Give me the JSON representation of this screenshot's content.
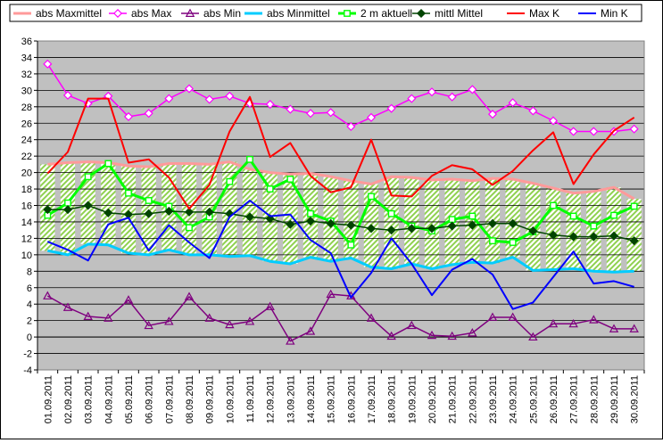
{
  "chart_data": {
    "type": "line",
    "title": "",
    "xlabel": "",
    "ylabel": "",
    "ylim": [
      -4,
      36
    ],
    "y_tick_step": 2,
    "grid": true,
    "legend_position": "top",
    "plot_background": "#c0c0c0",
    "band_color": "#8fd14f",
    "categories": [
      "01.09.2011",
      "02.09.2011",
      "03.09.2011",
      "04.09.2011",
      "05.09.2011",
      "06.09.2011",
      "07.09.2011",
      "08.09.2011",
      "09.09.2011",
      "10.09.2011",
      "11.09.2011",
      "12.09.2011",
      "13.09.2011",
      "14.09.2011",
      "15.09.2011",
      "16.09.2011",
      "17.09.2011",
      "18.09.2011",
      "19.09.2011",
      "20.09.2011",
      "21.09.2011",
      "22.09.2011",
      "23.09.2011",
      "24.09.2011",
      "25.09.2011",
      "26.09.2011",
      "27.09.2011",
      "28.09.2011",
      "29.09.2011",
      "30.09.2011"
    ],
    "series": [
      {
        "name": "abs Maxmittel",
        "color": "#ff9a9a",
        "width": 3,
        "marker": "none",
        "values": [
          21.0,
          21.2,
          21.3,
          21.2,
          20.8,
          20.7,
          21.1,
          21.1,
          21.0,
          21.3,
          20.4,
          20.0,
          19.8,
          19.9,
          19.5,
          19.0,
          18.6,
          19.5,
          19.4,
          19.1,
          19.2,
          19.0,
          19.3,
          19.2,
          18.7,
          18.1,
          17.5,
          17.7,
          18.2,
          16.8
        ]
      },
      {
        "name": "abs Max",
        "color": "#ff00ff",
        "width": 1.5,
        "marker": "diamond-open",
        "values": [
          33.2,
          29.4,
          28.4,
          29.3,
          26.8,
          27.2,
          29.0,
          30.2,
          28.9,
          29.3,
          28.4,
          28.3,
          27.7,
          27.2,
          27.3,
          25.6,
          26.7,
          27.8,
          29.0,
          29.8,
          29.2,
          30.1,
          27.1,
          28.5,
          27.5,
          26.3,
          25.0,
          25.0,
          25.0,
          25.3
        ]
      },
      {
        "name": "abs Min",
        "color": "#7f007f",
        "width": 1.5,
        "marker": "triangle-open",
        "values": [
          5.0,
          3.6,
          2.5,
          2.3,
          4.5,
          1.4,
          1.9,
          4.9,
          2.3,
          1.5,
          1.9,
          3.7,
          -0.5,
          0.7,
          5.2,
          5.0,
          2.3,
          0.1,
          1.4,
          0.2,
          0.1,
          0.5,
          2.4,
          2.4,
          0.0,
          1.6,
          1.6,
          2.1,
          1.0,
          1.0
        ]
      },
      {
        "name": "abs Minmittel",
        "color": "#00ccff",
        "width": 3,
        "marker": "none",
        "values": [
          10.5,
          10.0,
          11.3,
          11.2,
          10.2,
          10.0,
          10.6,
          10.0,
          10.0,
          9.8,
          9.9,
          9.2,
          8.9,
          9.7,
          9.2,
          9.6,
          8.5,
          8.3,
          8.9,
          8.3,
          8.8,
          9.1,
          9.0,
          9.7,
          8.1,
          8.2,
          8.3,
          8.0,
          7.9,
          8.0
        ]
      },
      {
        "name": "2 m aktuell",
        "color": "#00ff00",
        "width": 3,
        "marker": "square-open",
        "values": [
          14.8,
          16.3,
          19.5,
          21.1,
          17.5,
          16.6,
          15.9,
          13.3,
          14.6,
          18.9,
          21.6,
          18.0,
          19.2,
          15.0,
          14.1,
          11.2,
          17.1,
          15.0,
          13.5,
          12.9,
          14.3,
          14.7,
          11.7,
          11.5,
          12.8,
          16.0,
          14.7,
          13.5,
          14.8,
          15.9
        ]
      },
      {
        "name": "mittl Mittel",
        "color": "#004400",
        "width": 1.5,
        "marker": "diamond",
        "values": [
          15.5,
          15.5,
          16.0,
          15.1,
          14.9,
          15.0,
          15.3,
          15.2,
          15.2,
          15.0,
          14.6,
          14.4,
          13.7,
          14.1,
          13.8,
          13.6,
          13.2,
          13.0,
          13.2,
          13.2,
          13.5,
          13.6,
          13.8,
          13.8,
          12.9,
          12.4,
          12.2,
          12.2,
          12.3,
          11.7
        ]
      },
      {
        "name": "Max K",
        "color": "#ff0000",
        "width": 2,
        "marker": "none",
        "values": [
          19.9,
          22.5,
          29.0,
          29.0,
          21.2,
          21.6,
          19.4,
          15.6,
          18.5,
          25.0,
          29.2,
          21.9,
          23.6,
          19.6,
          17.6,
          18.2,
          24.0,
          17.2,
          17.1,
          19.6,
          20.9,
          20.4,
          18.5,
          20.2,
          22.7,
          24.9,
          18.6,
          22.2,
          25.1,
          26.7
        ]
      },
      {
        "name": "Min K",
        "color": "#0000ff",
        "width": 2,
        "marker": "none",
        "values": [
          11.6,
          10.6,
          9.3,
          13.7,
          14.5,
          10.5,
          13.6,
          11.5,
          9.6,
          14.6,
          16.6,
          14.7,
          14.9,
          11.8,
          10.2,
          4.8,
          7.8,
          12.0,
          8.9,
          5.1,
          8.2,
          9.5,
          7.6,
          3.4,
          4.2,
          7.3,
          10.4,
          6.5,
          6.8,
          6.1
        ]
      }
    ]
  }
}
